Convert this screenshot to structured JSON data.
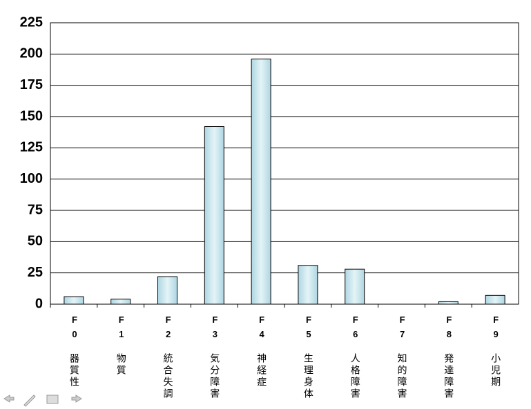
{
  "chart_data": {
    "type": "bar",
    "categories": [
      "F0",
      "F1",
      "F2",
      "F3",
      "F4",
      "F5",
      "F6",
      "F7",
      "F8",
      "F9"
    ],
    "category_names": [
      "器質性",
      "物質",
      "統合失調",
      "気分障害",
      "神経症",
      "生理身体",
      "人格障害",
      "知的障害",
      "発達障害",
      "小児期"
    ],
    "values": [
      6,
      4,
      22,
      142,
      196,
      31,
      28,
      0,
      2,
      7
    ],
    "color": "#c6e4ec",
    "ylim": [
      0,
      225
    ],
    "yticks": [
      0,
      25,
      50,
      75,
      100,
      125,
      150,
      175,
      200,
      225
    ],
    "grid": true
  }
}
